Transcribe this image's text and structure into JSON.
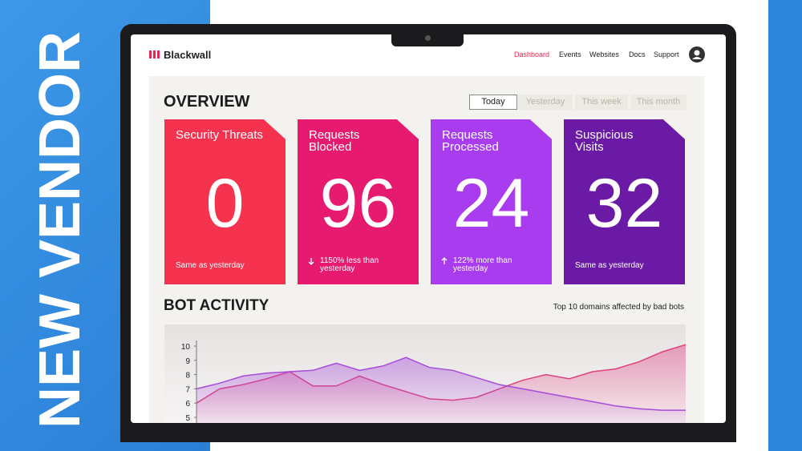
{
  "banner": {
    "text": "NEW VENDOR"
  },
  "app": {
    "brand": "Blackwall",
    "nav": [
      "Dashboard",
      "Events",
      "Websites",
      "Docs",
      "Support"
    ]
  },
  "overview": {
    "title": "OVERVIEW",
    "tabs": [
      "Today",
      "Yesterday",
      "This week",
      "This month"
    ],
    "cards": [
      {
        "title": "Security Threats",
        "value": 0,
        "note": "Same as yesterday"
      },
      {
        "title": "Requests Blocked",
        "value": 96,
        "note": "1150% less than yesterday"
      },
      {
        "title": "Requests Processed",
        "value": 24,
        "note": "122% more than yesterday"
      },
      {
        "title": "Suspicious Visits",
        "value": 32,
        "note": "Same as yesterday"
      }
    ]
  },
  "bot_activity": {
    "title": "BOT ACTIVITY",
    "subtitle": "Top 10 domains affected by bad bots",
    "chart": {
      "type": "area",
      "ylim": [
        5,
        10
      ],
      "yticks": [
        5,
        6,
        7,
        8,
        9,
        10
      ],
      "series": [
        {
          "color": "#e0407e",
          "values": [
            6.0,
            7.0,
            7.3,
            7.7,
            8.2,
            7.2,
            7.2,
            7.9,
            7.3,
            6.8,
            6.3,
            6.2,
            6.4,
            7.0,
            7.6,
            8.0,
            7.7,
            8.2,
            8.4,
            8.9,
            9.6,
            10.1
          ]
        },
        {
          "color": "#a64bd8",
          "values": [
            7.0,
            7.4,
            7.9,
            8.1,
            8.2,
            8.3,
            8.8,
            8.3,
            8.6,
            9.2,
            8.5,
            8.3,
            7.8,
            7.3,
            7.0,
            6.7,
            6.4,
            6.1,
            5.8,
            5.6,
            5.5,
            5.5
          ]
        }
      ]
    }
  }
}
